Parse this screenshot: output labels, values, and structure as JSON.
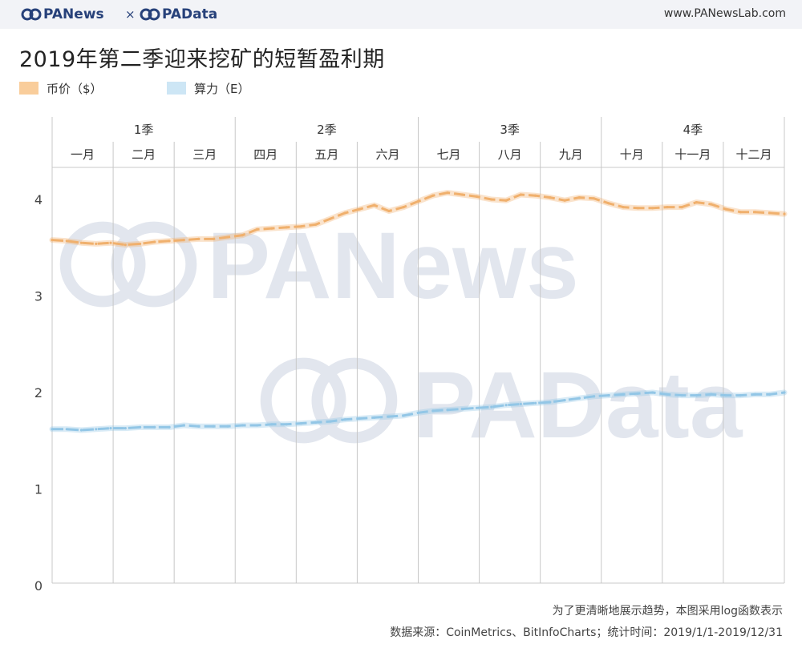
{
  "header": {
    "brand_left": "PANews",
    "separator": "×",
    "brand_right": "PAData",
    "url": "www.PANewsLab.com"
  },
  "watermarks": [
    "PANews",
    "PAData"
  ],
  "colors": {
    "price": "#f0b06d",
    "price_swatch": "#f9cd9b",
    "hashrate": "#92c6e6",
    "hashrate_swatch": "#cde6f5",
    "brand": "#27417a",
    "grid": "#c8c8c8"
  },
  "chart_data": {
    "type": "line",
    "title": "2019年第二季迎来挖矿的短暂盈利期",
    "legend": {
      "placement": "top-left",
      "entries": [
        "币价（$）",
        "算力（E）"
      ]
    },
    "quarters": [
      "1季",
      "2季",
      "3季",
      "4季"
    ],
    "months": [
      "一月",
      "二月",
      "三月",
      "四月",
      "五月",
      "六月",
      "七月",
      "八月",
      "九月",
      "十月",
      "十一月",
      "十二月"
    ],
    "x_unit": "month",
    "ylim": [
      0,
      4.4
    ],
    "yticks": [
      0,
      1,
      2,
      3,
      4
    ],
    "grid": "vertical month lines",
    "series": [
      {
        "name": "币价（$）",
        "values": [
          3.58,
          3.57,
          3.55,
          3.54,
          3.55,
          3.53,
          3.54,
          3.56,
          3.57,
          3.58,
          3.59,
          3.59,
          3.61,
          3.63,
          3.69,
          3.7,
          3.71,
          3.72,
          3.74,
          3.8,
          3.86,
          3.9,
          3.94,
          3.88,
          3.92,
          3.98,
          4.04,
          4.07,
          4.05,
          4.03,
          4.0,
          3.99,
          4.05,
          4.04,
          4.02,
          3.99,
          4.02,
          4.01,
          3.96,
          3.92,
          3.91,
          3.91,
          3.92,
          3.92,
          3.97,
          3.95,
          3.9,
          3.87,
          3.87,
          3.86,
          3.85
        ]
      },
      {
        "name": "算力（E）",
        "values": [
          1.62,
          1.62,
          1.61,
          1.62,
          1.63,
          1.63,
          1.64,
          1.64,
          1.64,
          1.66,
          1.65,
          1.65,
          1.65,
          1.66,
          1.66,
          1.67,
          1.67,
          1.68,
          1.69,
          1.7,
          1.72,
          1.73,
          1.74,
          1.75,
          1.76,
          1.79,
          1.81,
          1.82,
          1.83,
          1.84,
          1.85,
          1.87,
          1.88,
          1.89,
          1.9,
          1.92,
          1.94,
          1.96,
          1.97,
          1.98,
          1.99,
          2.0,
          1.98,
          1.97,
          1.97,
          1.98,
          1.97,
          1.97,
          1.98,
          1.98,
          2.0
        ]
      }
    ]
  },
  "footnotes": [
    "为了更清晰地展示趋势，本图采用log函数表示",
    "数据来源：CoinMetrics、BitInfoCharts；统计时间：2019/1/1-2019/12/31"
  ]
}
